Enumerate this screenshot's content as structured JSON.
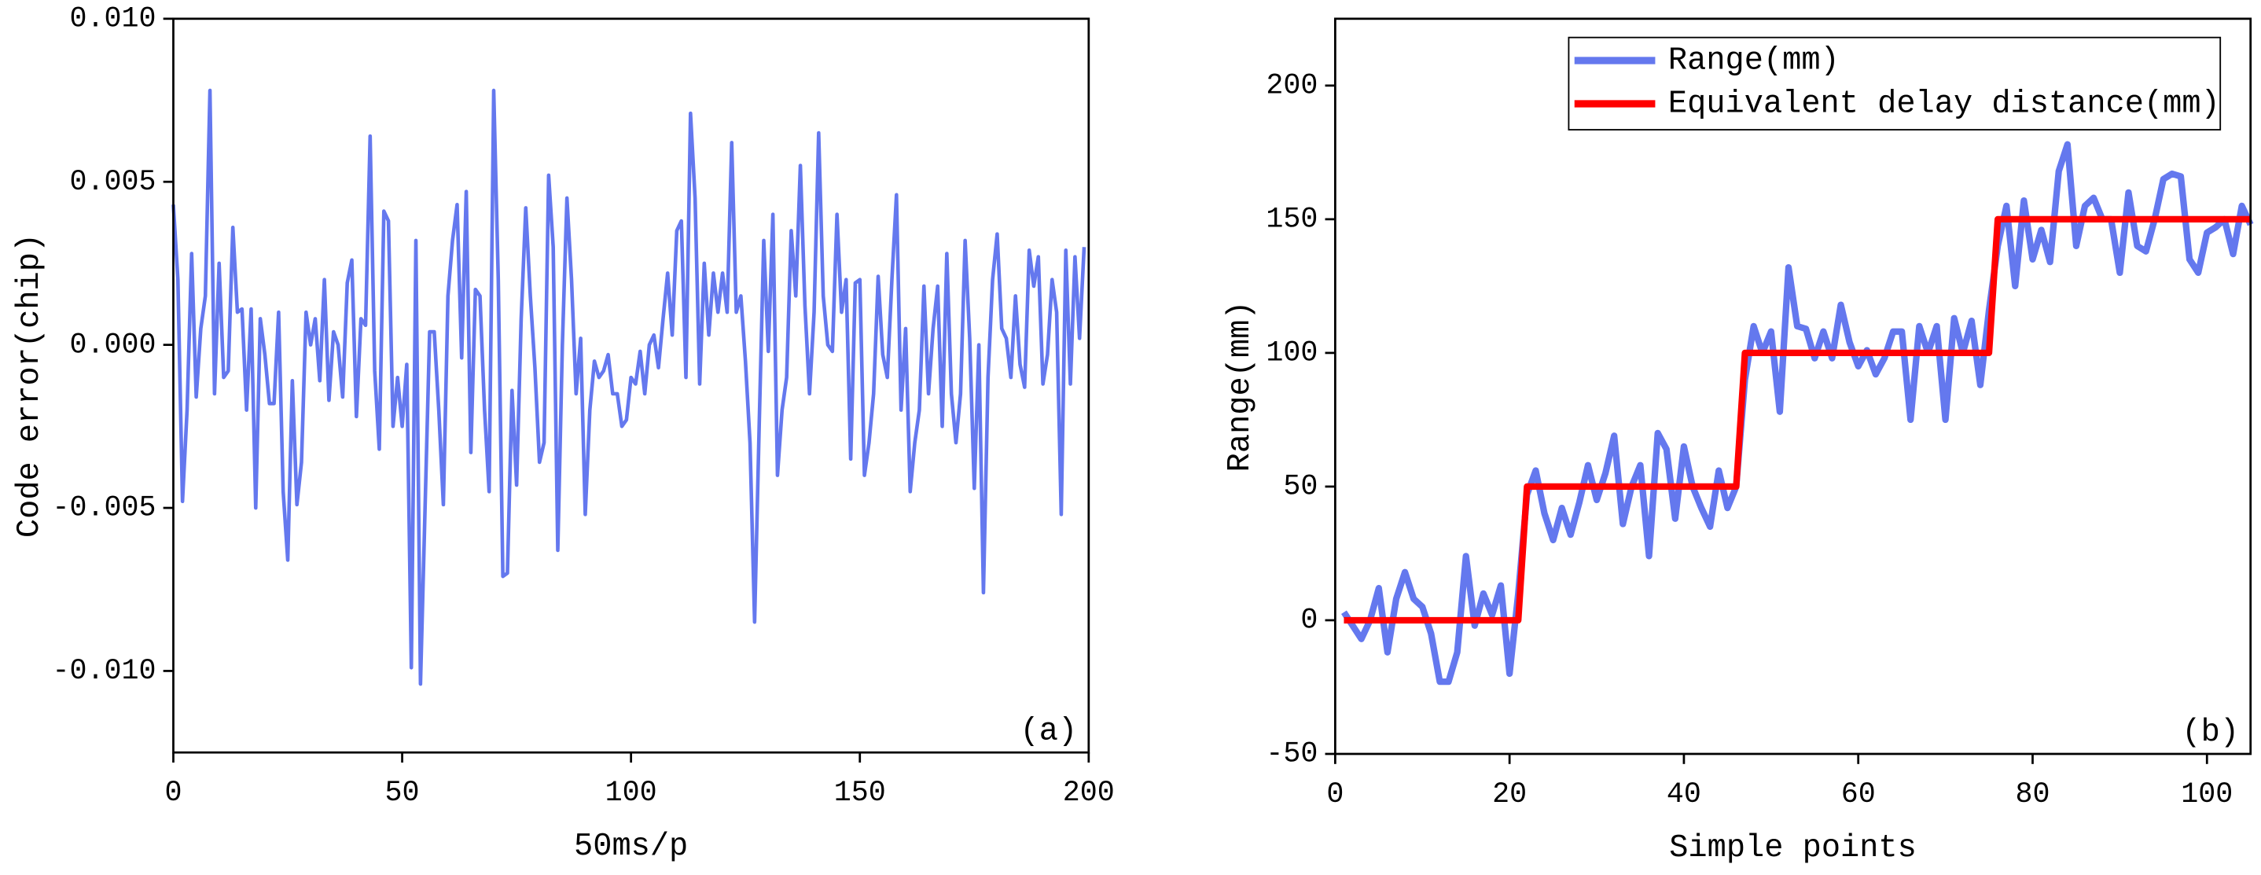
{
  "chart_data": [
    {
      "type": "line",
      "annotation": "(a)",
      "x_label": "50ms/p",
      "y_label": "Code error(chip)",
      "xlim": [
        0,
        200
      ],
      "ylim": [
        -0.0125,
        0.01
      ],
      "xticks": [
        0,
        50,
        100,
        150,
        200
      ],
      "yticks": [
        {
          "value": -0.01,
          "label": "-0.010"
        },
        {
          "value": -0.005,
          "label": "-0.005"
        },
        {
          "value": 0,
          "label": "0.000"
        },
        {
          "value": 0.005,
          "label": "0.005"
        },
        {
          "value": 0.01,
          "label": "0.010"
        }
      ],
      "series": [
        {
          "color": "#6478ee",
          "x": [
            0,
            1,
            2,
            3,
            4,
            5,
            6,
            7,
            8,
            9,
            10,
            11,
            12,
            13,
            14,
            15,
            16,
            17,
            18,
            19,
            20,
            21,
            22,
            23,
            24,
            25,
            26,
            27,
            28,
            29,
            30,
            31,
            32,
            33,
            34,
            35,
            36,
            37,
            38,
            39,
            40,
            41,
            42,
            43,
            44,
            45,
            46,
            47,
            48,
            49,
            50,
            51,
            52,
            53,
            54,
            55,
            56,
            57,
            58,
            59,
            60,
            61,
            62,
            63,
            64,
            65,
            66,
            67,
            68,
            69,
            70,
            71,
            72,
            73,
            74,
            75,
            76,
            77,
            78,
            79,
            80,
            81,
            82,
            83,
            84,
            85,
            86,
            87,
            88,
            89,
            90,
            91,
            92,
            93,
            94,
            95,
            96,
            97,
            98,
            99,
            100,
            101,
            102,
            103,
            104,
            105,
            106,
            107,
            108,
            109,
            110,
            111,
            112,
            113,
            114,
            115,
            116,
            117,
            118,
            119,
            120,
            121,
            122,
            123,
            124,
            125,
            126,
            127,
            128,
            129,
            130,
            131,
            132,
            133,
            134,
            135,
            136,
            137,
            138,
            139,
            140,
            141,
            142,
            143,
            144,
            145,
            146,
            147,
            148,
            149,
            150,
            151,
            152,
            153,
            154,
            155,
            156,
            157,
            158,
            159,
            160,
            161,
            162,
            163,
            164,
            165,
            166,
            167,
            168,
            169,
            170,
            171,
            172,
            173,
            174,
            175,
            176,
            177,
            178,
            179,
            180,
            181,
            182,
            183,
            184,
            185,
            186,
            187,
            188,
            189,
            190,
            191,
            192,
            193,
            194,
            195,
            196,
            197,
            198,
            199
          ],
          "values": [
            0.0043,
            0.002,
            -0.0048,
            -0.002,
            0.0028,
            -0.0016,
            0.0005,
            0.0015,
            0.0078,
            -0.0015,
            0.0025,
            -0.001,
            -0.0008,
            0.0036,
            0.001,
            0.0011,
            -0.002,
            0.0011,
            -0.005,
            0.0008,
            -0.0003,
            -0.0018,
            -0.0018,
            0.001,
            -0.0045,
            -0.0066,
            -0.0011,
            -0.0049,
            -0.0036,
            0.001,
            0,
            0.0008,
            -0.0011,
            0.002,
            -0.0017,
            0.0004,
            0,
            -0.0016,
            0.0019,
            0.0026,
            -0.0022,
            0.0008,
            0.0006,
            0.0064,
            -0.0008,
            -0.0032,
            0.0041,
            0.0038,
            -0.0025,
            -0.001,
            -0.0025,
            -0.0006,
            -0.0099,
            0.0032,
            -0.0104,
            -0.005,
            0.0004,
            0.0004,
            -0.002,
            -0.0049,
            0.0015,
            0.0032,
            0.0043,
            -0.0004,
            0.0047,
            -0.0033,
            0.0017,
            0.0015,
            -0.002,
            -0.0045,
            0.0078,
            0.002,
            -0.0071,
            -0.007,
            -0.0014,
            -0.0043,
            0.0008,
            0.0042,
            0.0015,
            -0.0007,
            -0.0036,
            -0.003,
            0.0052,
            0.003,
            -0.0063,
            0,
            0.0045,
            0.002,
            -0.0015,
            0.0002,
            -0.0052,
            -0.002,
            -0.0005,
            -0.001,
            -0.0008,
            -0.0003,
            -0.0015,
            -0.0015,
            -0.0025,
            -0.0023,
            -0.001,
            -0.0012,
            -0.0002,
            -0.0015,
            0,
            0.0003,
            -0.0007,
            0.0008,
            0.0022,
            0.0003,
            0.0035,
            0.0038,
            -0.001,
            0.0071,
            0.0045,
            -0.0012,
            0.0025,
            0.0003,
            0.0022,
            0.001,
            0.0022,
            0.001,
            0.0062,
            0.001,
            0.0015,
            -0.0005,
            -0.003,
            -0.0085,
            -0.0025,
            0.0032,
            -0.0002,
            0.004,
            -0.004,
            -0.002,
            -0.001,
            0.0035,
            0.0015,
            0.0055,
            0.0012,
            -0.0015,
            0.001,
            0.0065,
            0.0015,
            0,
            -0.0002,
            0.004,
            0.001,
            0.002,
            -0.0035,
            0.0019,
            0.002,
            -0.004,
            -0.003,
            -0.0015,
            0.0021,
            -0.0003,
            -0.001,
            0.002,
            0.0046,
            -0.002,
            0.0005,
            -0.0045,
            -0.003,
            -0.002,
            0.0018,
            -0.0015,
            0.0005,
            0.0018,
            -0.0025,
            0.0028,
            -0.0015,
            -0.003,
            -0.0015,
            0.0032,
            0.0002,
            -0.0044,
            0,
            -0.0076,
            -0.001,
            0.002,
            0.0034,
            0.0005,
            0.0002,
            -0.001,
            0.0015,
            -0.0006,
            -0.0013,
            0.0029,
            0.0018,
            0.0027,
            -0.0012,
            -0.0003,
            0.002,
            0.001,
            -0.0052,
            0.0029,
            -0.0012,
            0.0027,
            0.0002,
            0.003
          ]
        }
      ]
    },
    {
      "type": "line",
      "annotation": "(b)",
      "x_label": "Simple points",
      "y_label": "Range(mm)",
      "xlim": [
        0,
        105
      ],
      "ylim": [
        -50,
        225
      ],
      "xticks": [
        0,
        20,
        40,
        60,
        80,
        100
      ],
      "yticks": [
        -50,
        0,
        50,
        100,
        150,
        200
      ],
      "legend": "upper right",
      "series": [
        {
          "name": "Range(mm)",
          "color": "#6478ee",
          "x": [
            1,
            2,
            3,
            4,
            5,
            6,
            7,
            8,
            9,
            10,
            11,
            12,
            13,
            14,
            15,
            16,
            17,
            18,
            19,
            20,
            21,
            22,
            23,
            24,
            25,
            26,
            27,
            28,
            29,
            30,
            31,
            32,
            33,
            34,
            35,
            36,
            37,
            38,
            39,
            40,
            41,
            42,
            43,
            44,
            45,
            46,
            47,
            48,
            49,
            50,
            51,
            52,
            53,
            54,
            55,
            56,
            57,
            58,
            59,
            60,
            61,
            62,
            63,
            64,
            65,
            66,
            67,
            68,
            69,
            70,
            71,
            72,
            73,
            74,
            75,
            76,
            77,
            78,
            79,
            80,
            81,
            82,
            83,
            84,
            85,
            86,
            87,
            88,
            89,
            90,
            91,
            92,
            93,
            94,
            95,
            96,
            97,
            98,
            99,
            100,
            101,
            102,
            103,
            104,
            105
          ],
          "values": [
            3,
            -2,
            -7,
            0,
            12,
            -12,
            8,
            18,
            8,
            5,
            -5,
            -23,
            -23,
            -12,
            24,
            -2,
            10,
            2,
            13,
            -20,
            10,
            47,
            56,
            40,
            30,
            42,
            32,
            44,
            58,
            45,
            55,
            69,
            36,
            50,
            58,
            24,
            70,
            64,
            38,
            65,
            50,
            42,
            35,
            56,
            42,
            50,
            90,
            110,
            100,
            108,
            78,
            132,
            110,
            109,
            98,
            108,
            98,
            118,
            104,
            95,
            101,
            92,
            98,
            108,
            108,
            75,
            110,
            100,
            110,
            75,
            113,
            100,
            112,
            88,
            116,
            140,
            155,
            125,
            157,
            135,
            146,
            134,
            168,
            178,
            140,
            155,
            158,
            150,
            150,
            130,
            160,
            140,
            138,
            150,
            165,
            167,
            166,
            135,
            130,
            145,
            147,
            150,
            137,
            155,
            148
          ]
        },
        {
          "name": "Equivalent delay distance(mm)",
          "color": "#ff0000",
          "x": [
            1,
            2,
            3,
            4,
            5,
            6,
            7,
            8,
            9,
            10,
            11,
            12,
            13,
            14,
            15,
            16,
            17,
            18,
            19,
            20,
            21,
            22,
            23,
            24,
            25,
            26,
            27,
            28,
            29,
            30,
            31,
            32,
            33,
            34,
            35,
            36,
            37,
            38,
            39,
            40,
            41,
            42,
            43,
            44,
            45,
            46,
            47,
            48,
            49,
            50,
            51,
            52,
            53,
            54,
            55,
            56,
            57,
            58,
            59,
            60,
            61,
            62,
            63,
            64,
            65,
            66,
            67,
            68,
            69,
            70,
            71,
            72,
            73,
            74,
            75,
            76,
            77,
            78,
            79,
            80,
            81,
            82,
            83,
            84,
            85,
            86,
            87,
            88,
            89,
            90,
            91,
            92,
            93,
            94,
            95,
            96,
            97,
            98,
            99,
            100,
            101,
            102,
            103,
            104,
            105
          ],
          "values": [
            0,
            0,
            0,
            0,
            0,
            0,
            0,
            0,
            0,
            0,
            0,
            0,
            0,
            0,
            0,
            0,
            0,
            0,
            0,
            0,
            0,
            50,
            50,
            50,
            50,
            50,
            50,
            50,
            50,
            50,
            50,
            50,
            50,
            50,
            50,
            50,
            50,
            50,
            50,
            50,
            50,
            50,
            50,
            50,
            50,
            50,
            100,
            100,
            100,
            100,
            100,
            100,
            100,
            100,
            100,
            100,
            100,
            100,
            100,
            100,
            100,
            100,
            100,
            100,
            100,
            100,
            100,
            100,
            100,
            100,
            100,
            100,
            100,
            100,
            100,
            150,
            150,
            150,
            150,
            150,
            150,
            150,
            150,
            150,
            150,
            150,
            150,
            150,
            150,
            150,
            150,
            150,
            150,
            150,
            150,
            150,
            150,
            150,
            150,
            150,
            150,
            150,
            150,
            150,
            150
          ]
        }
      ]
    }
  ]
}
